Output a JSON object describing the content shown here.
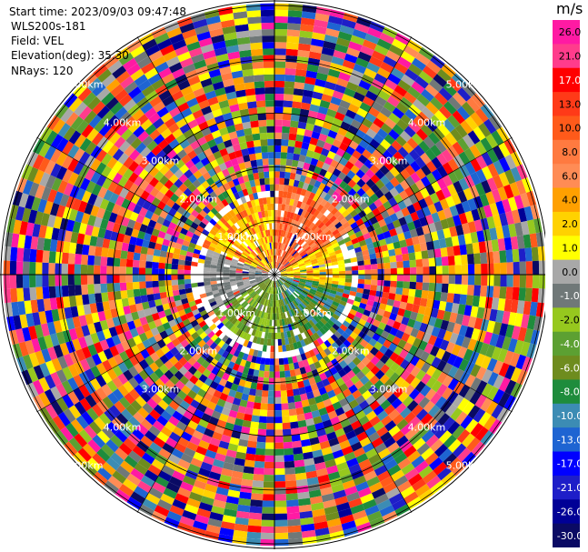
{
  "header": {
    "start_time": "Start time: 2023/09/03 09:47:48",
    "instrument": "WLS200s-181",
    "field": "Field: VEL",
    "elevation": "Elevation(deg): 35.30",
    "nrays": "NRays: 120"
  },
  "chart_data": {
    "type": "heatmap",
    "projection": "polar-ppi",
    "n_rays": 120,
    "range_rings_km": [
      1.0,
      2.0,
      3.0,
      4.0,
      5.0
    ],
    "ring_labels": [
      "1.00km",
      "2.00km",
      "3.00km",
      "4.00km",
      "5.00km"
    ],
    "max_range_km": 5.1,
    "grid": true,
    "colorbar": {
      "unit": "m/s",
      "position": "right",
      "tick_labels": [
        "26.0",
        "21.0",
        "17.0",
        "13.0",
        "10.0",
        "8.0",
        "6.0",
        "4.0",
        "2.0",
        "1.0",
        "0.0",
        "-1.0",
        "-2.0",
        "-4.0",
        "-6.0",
        "-8.0",
        "-10.0",
        "-13.0",
        "-17.0",
        "-21.0",
        "-26.0",
        "-30.0"
      ],
      "colors": [
        "#ff1aa3",
        "#ff3c8c",
        "#ff0000",
        "#ff3a18",
        "#ff5a1a",
        "#ff7a40",
        "#ff8c55",
        "#ffa000",
        "#ffd200",
        "#ffff00",
        "#a8a8a8",
        "#707878",
        "#96c81e",
        "#5ca032",
        "#6e8c1e",
        "#1e8c3c",
        "#3c8cb4",
        "#1e64d2",
        "#0000ff",
        "#1e1ec8",
        "#000096",
        "#0a0a64"
      ]
    },
    "velocity_regions": [
      {
        "from_az": 0,
        "to_az": 60,
        "from_km": 0.0,
        "to_km": 1.6,
        "values": [
          10.0,
          8.0,
          13.0,
          6.0
        ]
      },
      {
        "from_az": 60,
        "to_az": 100,
        "from_km": 0.0,
        "to_km": 1.3,
        "values": [
          2.0,
          1.0,
          4.0
        ]
      },
      {
        "from_az": 100,
        "to_az": 170,
        "from_km": 0.0,
        "to_km": 1.4,
        "values": [
          -6.0,
          -8.0,
          -10.0
        ]
      },
      {
        "from_az": 170,
        "to_az": 240,
        "from_km": 0.0,
        "to_km": 1.3,
        "values": [
          -4.0,
          -2.0,
          -6.0
        ]
      },
      {
        "from_az": 240,
        "to_az": 290,
        "from_km": 0.0,
        "to_km": 1.3,
        "values": [
          0.0,
          -1.0
        ]
      },
      {
        "from_az": 290,
        "to_az": 360,
        "from_km": 0.0,
        "to_km": 1.4,
        "values": [
          1.0,
          2.0,
          4.0,
          10.0
        ]
      }
    ]
  }
}
